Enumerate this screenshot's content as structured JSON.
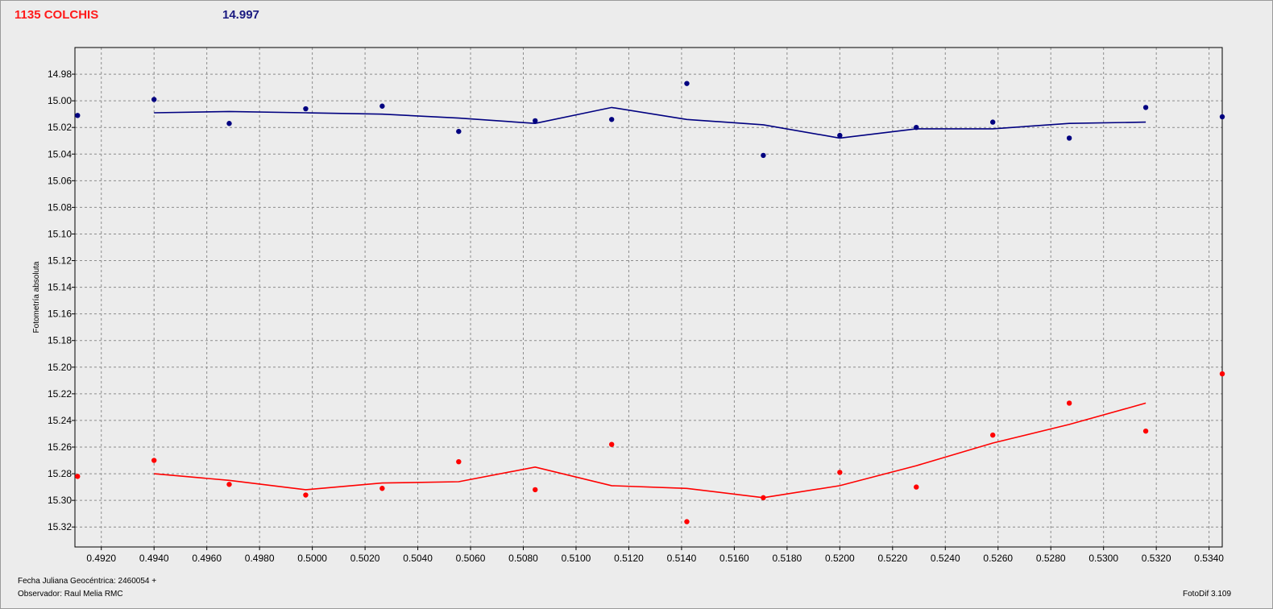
{
  "header": {
    "star_name": "1135 COLCHIS",
    "magnitude": "14.997"
  },
  "footer": {
    "date_line": "Fecha Juliana Geocéntrica: 2460054 +",
    "observer_line": "Observador: Raul Melia RMC",
    "version": "FotoDif 3.109"
  },
  "colors": {
    "blue_series": "#000080",
    "red_series": "#ff0000",
    "grid": "#8c8c8c",
    "plot_bg": "#ececec"
  },
  "chart_data": {
    "type": "scatter",
    "ylabel": "Fotometría absoluta",
    "xlabel": "",
    "xlim": [
      0.491,
      0.5345
    ],
    "ylim": [
      14.96,
      15.335
    ],
    "y_inverted": true,
    "grid": true,
    "x_ticks": [
      "0.4920",
      "0.4940",
      "0.4960",
      "0.4980",
      "0.5000",
      "0.5020",
      "0.5040",
      "0.5060",
      "0.5080",
      "0.5100",
      "0.5120",
      "0.5140",
      "0.5160",
      "0.5180",
      "0.5200",
      "0.5220",
      "0.5240",
      "0.5260",
      "0.5280",
      "0.5300",
      "0.5320",
      "0.5340"
    ],
    "y_ticks": [
      "14.98",
      "15.00",
      "15.02",
      "15.04",
      "15.06",
      "15.08",
      "15.10",
      "15.12",
      "15.14",
      "15.16",
      "15.18",
      "15.20",
      "15.22",
      "15.24",
      "15.26",
      "15.28",
      "15.30",
      "15.32"
    ],
    "series": [
      {
        "color": "#000080",
        "points": [
          [
            0.4911,
            15.011
          ],
          [
            0.494,
            14.999
          ],
          [
            0.49685,
            15.017
          ],
          [
            0.49975,
            15.006
          ],
          [
            0.50265,
            15.004
          ],
          [
            0.50555,
            15.023
          ],
          [
            0.50845,
            15.015
          ],
          [
            0.51135,
            15.014
          ],
          [
            0.5142,
            14.987
          ],
          [
            0.5171,
            15.041
          ],
          [
            0.52,
            15.026
          ],
          [
            0.5229,
            15.02
          ],
          [
            0.5258,
            15.016
          ],
          [
            0.5287,
            15.028
          ],
          [
            0.5316,
            15.005
          ],
          [
            0.5345,
            15.012
          ]
        ],
        "trend": [
          [
            0.494,
            15.009
          ],
          [
            0.49685,
            15.008
          ],
          [
            0.49975,
            15.009
          ],
          [
            0.50265,
            15.01
          ],
          [
            0.50555,
            15.013
          ],
          [
            0.50845,
            15.017
          ],
          [
            0.51135,
            15.005
          ],
          [
            0.5142,
            15.014
          ],
          [
            0.5171,
            15.018
          ],
          [
            0.52,
            15.028
          ],
          [
            0.5229,
            15.021
          ],
          [
            0.5258,
            15.021
          ],
          [
            0.5287,
            15.017
          ],
          [
            0.5316,
            15.016
          ]
        ]
      },
      {
        "color": "#ff0000",
        "points": [
          [
            0.4911,
            15.282
          ],
          [
            0.494,
            15.27
          ],
          [
            0.49685,
            15.288
          ],
          [
            0.49975,
            15.296
          ],
          [
            0.50265,
            15.291
          ],
          [
            0.50555,
            15.271
          ],
          [
            0.50845,
            15.292
          ],
          [
            0.51135,
            15.258
          ],
          [
            0.5142,
            15.316
          ],
          [
            0.5171,
            15.298
          ],
          [
            0.52,
            15.279
          ],
          [
            0.5229,
            15.29
          ],
          [
            0.5258,
            15.251
          ],
          [
            0.5287,
            15.227
          ],
          [
            0.5316,
            15.248
          ],
          [
            0.5345,
            15.205
          ]
        ],
        "trend": [
          [
            0.494,
            15.28
          ],
          [
            0.49685,
            15.285
          ],
          [
            0.49975,
            15.292
          ],
          [
            0.50265,
            15.287
          ],
          [
            0.50555,
            15.286
          ],
          [
            0.50845,
            15.275
          ],
          [
            0.51135,
            15.289
          ],
          [
            0.5142,
            15.291
          ],
          [
            0.5171,
            15.298
          ],
          [
            0.52,
            15.289
          ],
          [
            0.5229,
            15.274
          ],
          [
            0.5258,
            15.257
          ],
          [
            0.5287,
            15.243
          ],
          [
            0.5316,
            15.227
          ]
        ]
      }
    ]
  }
}
